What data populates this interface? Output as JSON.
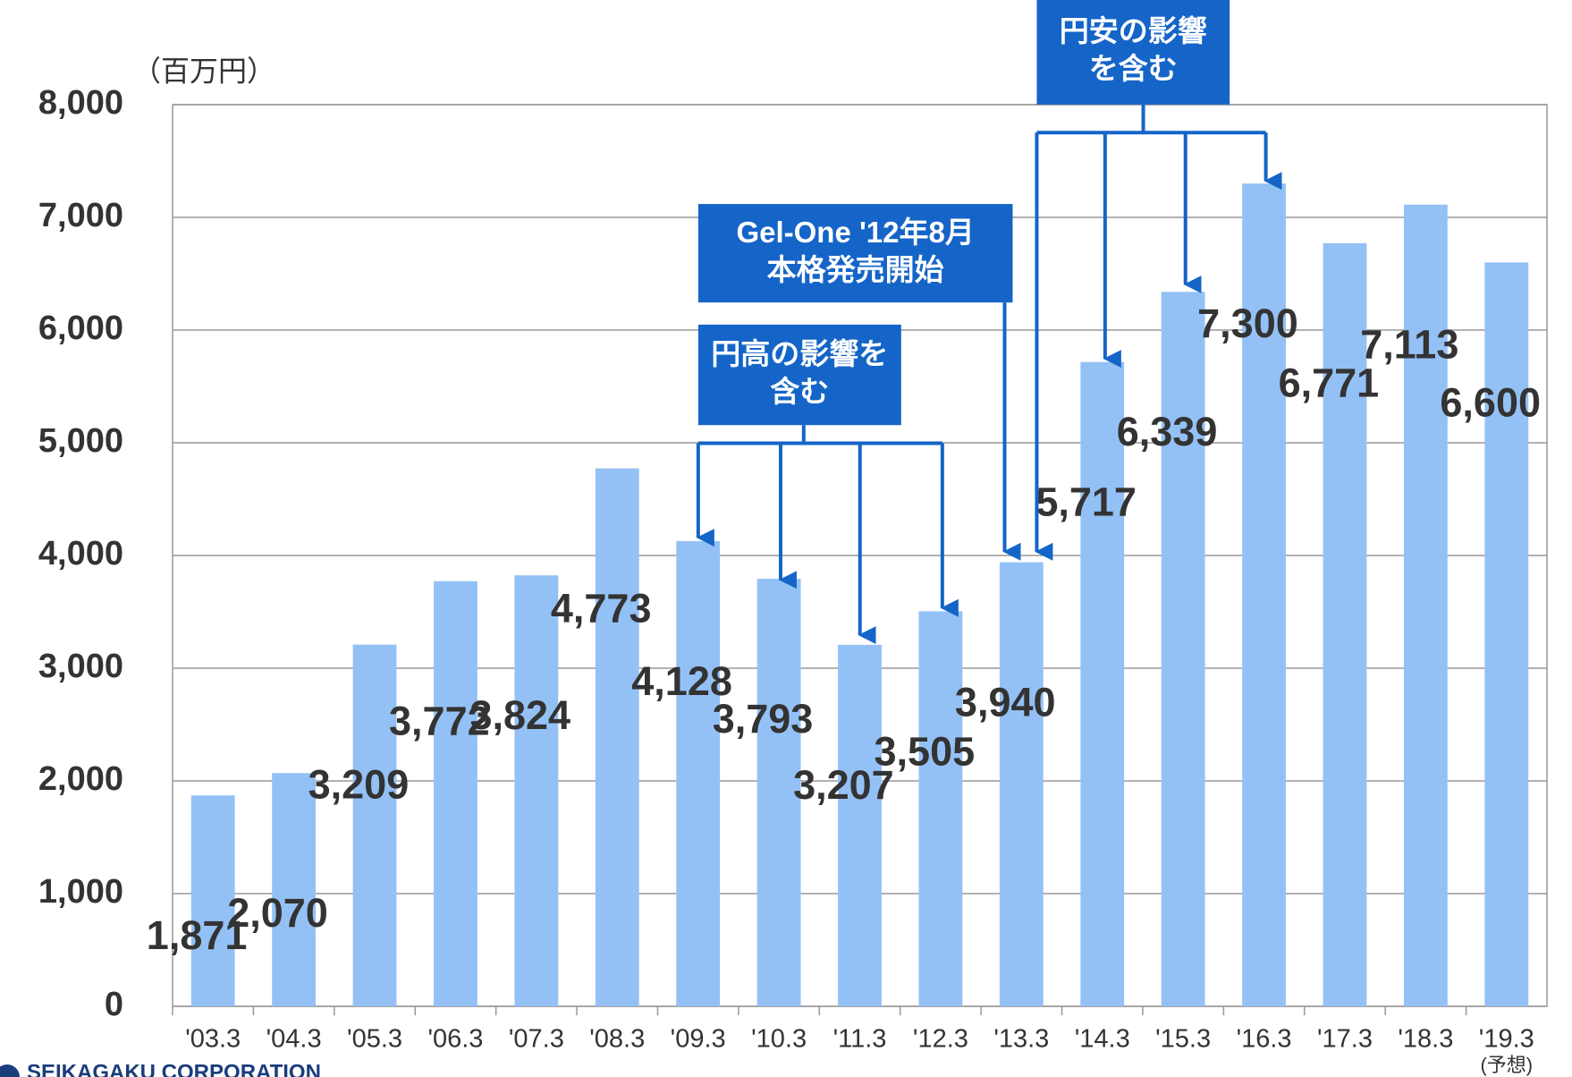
{
  "chart_data": {
    "type": "bar",
    "unit_label": "（百万円）",
    "categories": [
      "'03.3",
      "'04.3",
      "'05.3",
      "'06.3",
      "'07.3",
      "'08.3",
      "'09.3",
      "'10.3",
      "'11.3",
      "'12.3",
      "'13.3",
      "'14.3",
      "'15.3",
      "'16.3",
      "'17.3",
      "'18.3",
      "'19.3"
    ],
    "category_note": "(予想)",
    "values": [
      1871,
      2070,
      3209,
      3772,
      3824,
      4773,
      4128,
      3793,
      3207,
      3505,
      3940,
      5717,
      6339,
      7300,
      6771,
      7113,
      6600
    ],
    "value_labels": [
      "1,871",
      "2,070",
      "3,209",
      "3,772",
      "3,824",
      "4,773",
      "4,128",
      "3,793",
      "3,207",
      "3,505",
      "3,940",
      "5,717",
      "6,339",
      "7,300",
      "6,771",
      "7,113",
      "6,600"
    ],
    "color": "#94c1f5",
    "ylim": [
      0,
      8000
    ],
    "yticks": [
      0,
      {
        "value": 1000,
        "label": "1,000"
      },
      {
        "value": 2000,
        "label": "2,000"
      },
      {
        "value": 3000,
        "label": "3,000"
      },
      {
        "value": 4000,
        "label": "4,000"
      },
      {
        "value": 5000,
        "label": "5,000"
      },
      {
        "value": 6000,
        "label": "6,000"
      },
      {
        "value": 7000,
        "label": "7,000"
      },
      {
        "value": 8000,
        "label": "8,000"
      }
    ],
    "grid": true,
    "annotations": [
      {
        "lines": [
          "円高の影響を",
          "含む"
        ]
      },
      {
        "lines": [
          "Gel-One '12年8月",
          "本格発売開始"
        ]
      },
      {
        "lines": [
          "円安の影響",
          "を含む"
        ]
      }
    ],
    "footer": "SEIKAGAKU CORPORATION"
  }
}
